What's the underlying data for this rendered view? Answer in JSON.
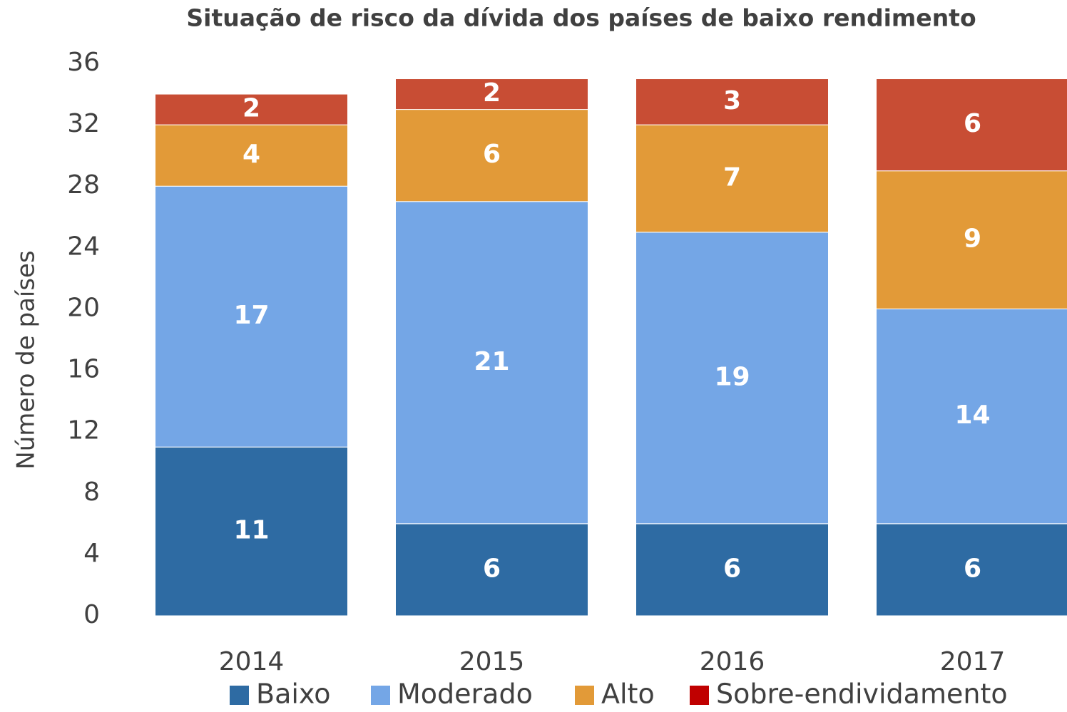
{
  "chart_data": {
    "type": "stacked_bar",
    "title": "Situação de risco da dívida dos países de baixo rendimento",
    "ylabel": "Número de países",
    "categories": [
      "2014",
      "2015",
      "2016",
      "2017"
    ],
    "series": [
      {
        "name": "Baixo",
        "color": "#2e6ba3",
        "legend_color": "#2e6ba3",
        "values": [
          11,
          6,
          6,
          6
        ]
      },
      {
        "name": "Moderado",
        "color": "#74a6e6",
        "legend_color": "#74a6e6",
        "values": [
          17,
          21,
          19,
          14
        ]
      },
      {
        "name": "Alto",
        "color": "#e29a38",
        "legend_color": "#e29a38",
        "values": [
          4,
          6,
          7,
          9
        ]
      },
      {
        "name": "Sobre-endividamento",
        "color": "#c84d34",
        "legend_color": "#c00000",
        "values": [
          2,
          2,
          3,
          6
        ]
      }
    ],
    "ylim": [
      0,
      36
    ],
    "yticks": [
      0,
      4,
      8,
      12,
      16,
      20,
      24,
      28,
      32,
      36
    ],
    "grid": false,
    "legend": "bottom"
  }
}
